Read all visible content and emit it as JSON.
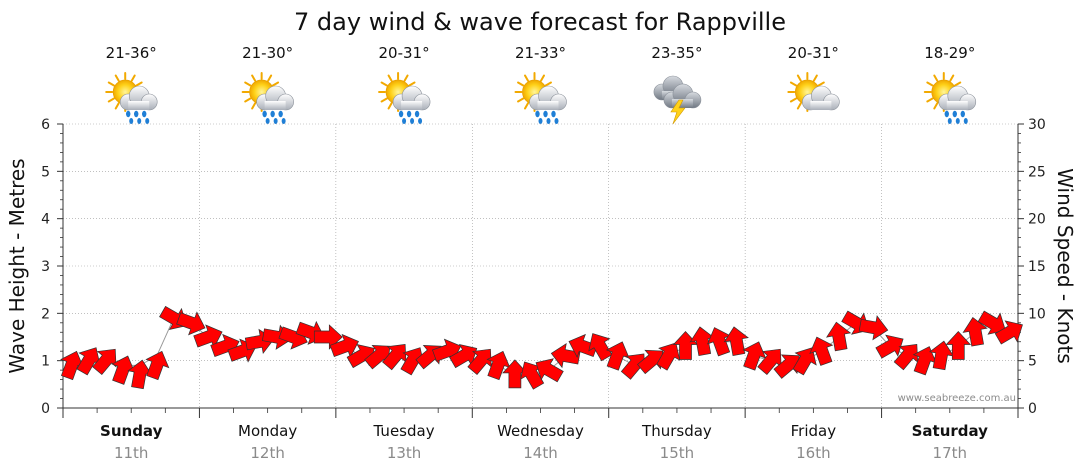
{
  "chart_data": {
    "type": "wind-wave",
    "title": "7 day wind & wave forecast for Rappville",
    "y_left_label": "Wave Height - Metres",
    "y_right_label": "Wind Speed - Knots",
    "y_left_ticks": [
      "0",
      "1",
      "2",
      "3",
      "4",
      "5",
      "6"
    ],
    "y_right_ticks": [
      "0",
      "5",
      "10",
      "15",
      "20",
      "25",
      "30"
    ],
    "ylim_left": [
      0,
      6
    ],
    "ylim_right": [
      0,
      30
    ],
    "grid": true,
    "watermark": "www.seabreeze.com.au",
    "colors": {
      "arrow_fill": "#ff0000",
      "arrow_stroke": "#333333",
      "wave_line": "#999999",
      "grid": "#9a9a9a",
      "axis": "#333333",
      "date_text": "#8a8a8a"
    },
    "days": [
      {
        "day": "Sunday",
        "date": "11th",
        "bold": true,
        "temp": "21-36°",
        "icon": "sun-cloud-rain-icon"
      },
      {
        "day": "Monday",
        "date": "12th",
        "bold": false,
        "temp": "21-30°",
        "icon": "sun-cloud-rain-icon"
      },
      {
        "day": "Tuesday",
        "date": "13th",
        "bold": false,
        "temp": "20-31°",
        "icon": "sun-cloud-rain-icon"
      },
      {
        "day": "Wednesday",
        "date": "14th",
        "bold": false,
        "temp": "21-33°",
        "icon": "sun-cloud-rain-icon"
      },
      {
        "day": "Thursday",
        "date": "15th",
        "bold": false,
        "temp": "23-35°",
        "icon": "storm-cloud-icon"
      },
      {
        "day": "Friday",
        "date": "16th",
        "bold": false,
        "temp": "20-31°",
        "icon": "sun-cloud-icon"
      },
      {
        "day": "Saturday",
        "date": "17th",
        "bold": true,
        "temp": "18-29°",
        "icon": "sun-cloud-rain-icon"
      }
    ],
    "time_step_hours": 3,
    "wave_height_m": [
      [
        0.9,
        1.0,
        1.0,
        0.9,
        0.9,
        1.1,
        1.9,
        1.8
      ],
      [
        1.5,
        1.3,
        1.2,
        1.4,
        1.5,
        1.5,
        1.6,
        1.5
      ],
      [
        1.3,
        1.1,
        1.1,
        1.1,
        1.0,
        1.1,
        1.2,
        1.1
      ],
      [
        1.0,
        0.9,
        0.7,
        0.7,
        0.8,
        1.1,
        1.3,
        1.3
      ],
      [
        1.1,
        0.9,
        1.0,
        1.1,
        1.3,
        1.4,
        1.4,
        1.4
      ],
      [
        1.1,
        1.0,
        0.9,
        1.0,
        1.2,
        1.5,
        1.8,
        1.7
      ],
      [
        1.3,
        1.1,
        1.0,
        1.1,
        1.3,
        1.6,
        1.8,
        1.6
      ]
    ],
    "wind_speed_kn": [
      [
        4.5,
        5,
        5,
        4,
        3.5,
        4.5,
        9.5,
        9
      ],
      [
        7.5,
        6.5,
        6,
        7,
        7.5,
        7.5,
        8,
        7.5
      ],
      [
        6.5,
        5.5,
        5.5,
        5.5,
        5,
        5.5,
        6,
        5.5
      ],
      [
        5,
        4.5,
        3.5,
        3.5,
        4,
        5.5,
        6.5,
        6.5
      ],
      [
        5.5,
        4.5,
        5,
        5.5,
        6.5,
        7,
        7,
        7
      ],
      [
        5.5,
        5,
        4.5,
        5,
        6,
        7.5,
        9,
        8.5
      ],
      [
        6.5,
        5.5,
        5,
        5.5,
        6.5,
        8,
        9,
        8
      ]
    ],
    "wind_direction_deg": [
      [
        200,
        210,
        220,
        200,
        190,
        200,
        300,
        290
      ],
      [
        250,
        250,
        250,
        260,
        280,
        290,
        290,
        270
      ],
      [
        250,
        240,
        230,
        220,
        210,
        230,
        250,
        240
      ],
      [
        220,
        200,
        180,
        150,
        120,
        100,
        110,
        150
      ],
      [
        200,
        220,
        230,
        210,
        180,
        170,
        160,
        170
      ],
      [
        200,
        220,
        230,
        210,
        160,
        170,
        300,
        280
      ],
      [
        240,
        220,
        200,
        190,
        180,
        170,
        300,
        240
      ]
    ]
  }
}
